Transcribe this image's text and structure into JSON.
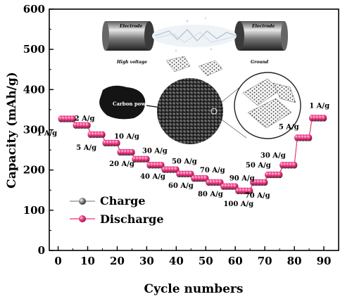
{
  "chart_data": {
    "type": "scatter",
    "xlabel": "Cycle numbers",
    "ylabel": "Capacity (mAh/g)",
    "xlim": [
      -3,
      95
    ],
    "ylim": [
      0,
      600
    ],
    "xticks": [
      0,
      10,
      20,
      30,
      40,
      50,
      60,
      70,
      80,
      90
    ],
    "yticks": [
      0,
      100,
      200,
      300,
      400,
      500,
      600
    ],
    "legend": {
      "position": "bottom-left",
      "entries": [
        "Charge",
        "Discharge"
      ]
    },
    "colors": {
      "charge": "#8a8a8a",
      "discharge": "#e8307a"
    },
    "segments": [
      {
        "label": "1 A/g",
        "x_start": 1,
        "x_end": 5,
        "charge": 326,
        "discharge": 328
      },
      {
        "label": "2 A/g",
        "x_start": 6,
        "x_end": 10,
        "charge": 310,
        "discharge": 312
      },
      {
        "label": "5 A/g",
        "x_start": 11,
        "x_end": 15,
        "charge": 287,
        "discharge": 289
      },
      {
        "label": "10 A/g",
        "x_start": 16,
        "x_end": 20,
        "charge": 266,
        "discharge": 268
      },
      {
        "label": "20 A/g",
        "x_start": 21,
        "x_end": 25,
        "charge": 243,
        "discharge": 245
      },
      {
        "label": "30 A/g",
        "x_start": 26,
        "x_end": 30,
        "charge": 226,
        "discharge": 228
      },
      {
        "label": "40 A/g",
        "x_start": 31,
        "x_end": 35,
        "charge": 211,
        "discharge": 213
      },
      {
        "label": "50 A/g",
        "x_start": 36,
        "x_end": 40,
        "charge": 200,
        "discharge": 202
      },
      {
        "label": "60 A/g",
        "x_start": 41,
        "x_end": 45,
        "charge": 189,
        "discharge": 191
      },
      {
        "label": "70 A/g",
        "x_start": 46,
        "x_end": 50,
        "charge": 178,
        "discharge": 180
      },
      {
        "label": "80 A/g",
        "x_start": 51,
        "x_end": 55,
        "charge": 168,
        "discharge": 170
      },
      {
        "label": "90 A/g",
        "x_start": 56,
        "x_end": 60,
        "charge": 158,
        "discharge": 160
      },
      {
        "label": "100 A/g",
        "x_start": 61,
        "x_end": 65,
        "charge": 147,
        "discharge": 149
      },
      {
        "label": "70 A/g",
        "x_start": 66,
        "x_end": 70,
        "charge": 168,
        "discharge": 170
      },
      {
        "label": "50 A/g",
        "x_start": 71,
        "x_end": 75,
        "charge": 187,
        "discharge": 189
      },
      {
        "label": "30 A/g",
        "x_start": 76,
        "x_end": 80,
        "charge": 211,
        "discharge": 213
      },
      {
        "label": "5 A/g",
        "x_start": 81,
        "x_end": 85,
        "charge": 279,
        "discharge": 281
      },
      {
        "label": "1 A/g",
        "x_start": 86,
        "x_end": 90,
        "charge": 328,
        "discharge": 330
      }
    ]
  },
  "inset": {
    "electrode_left": "Electrode",
    "electrode_right": "Electrode",
    "high_voltage": "High voltage",
    "ground": "Ground",
    "carbon_powder": "Carbon powder"
  }
}
